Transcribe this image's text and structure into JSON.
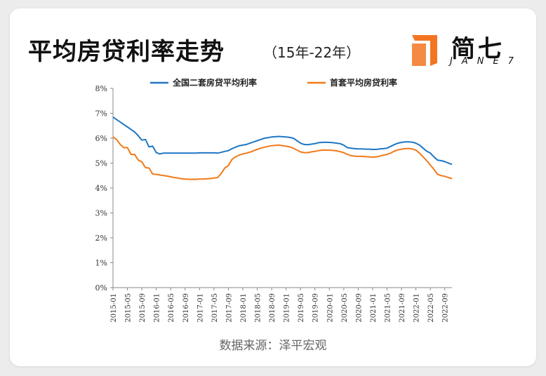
{
  "header": {
    "title": "平均房贷利率走势",
    "subtitle": "（15年-22年）"
  },
  "logo": {
    "cn": "简七",
    "en": "JANE7"
  },
  "source": "数据来源：泽平宏观",
  "colors": {
    "blue": "#1f77c4",
    "orange": "#f07a1a",
    "logo_accent": "#f47521"
  },
  "chart_data": {
    "type": "line",
    "title": "",
    "xlabel": "",
    "ylabel": "",
    "ylim": [
      0,
      8
    ],
    "yticks": [
      "0%",
      "1%",
      "2%",
      "3%",
      "4%",
      "5%",
      "6%",
      "7%",
      "8%"
    ],
    "x": [
      "2015-01",
      "2015-02",
      "2015-03",
      "2015-04",
      "2015-05",
      "2015-06",
      "2015-07",
      "2015-08",
      "2015-09",
      "2015-10",
      "2015-11",
      "2015-12",
      "2016-01",
      "2016-02",
      "2016-03",
      "2016-04",
      "2016-05",
      "2016-06",
      "2016-07",
      "2016-08",
      "2016-09",
      "2016-10",
      "2016-11",
      "2016-12",
      "2017-01",
      "2017-02",
      "2017-03",
      "2017-04",
      "2017-05",
      "2017-06",
      "2017-07",
      "2017-08",
      "2017-09",
      "2017-10",
      "2017-11",
      "2017-12",
      "2018-01",
      "2018-02",
      "2018-03",
      "2018-04",
      "2018-05",
      "2018-06",
      "2018-07",
      "2018-08",
      "2018-09",
      "2018-10",
      "2018-11",
      "2018-12",
      "2019-01",
      "2019-02",
      "2019-03",
      "2019-04",
      "2019-05",
      "2019-06",
      "2019-07",
      "2019-08",
      "2019-09",
      "2019-10",
      "2019-11",
      "2019-12",
      "2020-01",
      "2020-02",
      "2020-03",
      "2020-04",
      "2020-05",
      "2020-06",
      "2020-07",
      "2020-08",
      "2020-09",
      "2020-10",
      "2020-11",
      "2020-12",
      "2021-01",
      "2021-02",
      "2021-03",
      "2021-04",
      "2021-05",
      "2021-06",
      "2021-07",
      "2021-08",
      "2021-09",
      "2021-10",
      "2021-11",
      "2021-12",
      "2022-01",
      "2022-02",
      "2022-03",
      "2022-04",
      "2022-05",
      "2022-06",
      "2022-07",
      "2022-08",
      "2022-09",
      "2022-10",
      "2022-11"
    ],
    "xtick_labels": [
      "2015-01",
      "2015-05",
      "2015-09",
      "2016-01",
      "2016-05",
      "2016-09",
      "2017-01",
      "2017-05",
      "2017-09",
      "2018-01",
      "2018-05",
      "2018-09",
      "2019-01",
      "2019-05",
      "2019-09",
      "2020-01",
      "2020-05",
      "2020-09",
      "2021-01",
      "2021-05",
      "2021-09",
      "2022-01",
      "2022-05",
      "2022-09"
    ],
    "series": [
      {
        "name": "全国二套房贷平均利率",
        "color": "#1f77c4",
        "values": [
          6.85,
          6.75,
          6.65,
          6.55,
          6.45,
          6.35,
          6.25,
          6.1,
          5.92,
          5.95,
          5.65,
          5.68,
          5.42,
          5.37,
          5.4,
          5.4,
          5.4,
          5.4,
          5.4,
          5.4,
          5.4,
          5.4,
          5.4,
          5.4,
          5.41,
          5.41,
          5.41,
          5.41,
          5.41,
          5.4,
          5.43,
          5.47,
          5.5,
          5.58,
          5.64,
          5.7,
          5.72,
          5.75,
          5.8,
          5.85,
          5.9,
          5.95,
          6.0,
          6.02,
          6.05,
          6.06,
          6.07,
          6.06,
          6.05,
          6.03,
          6.0,
          5.9,
          5.8,
          5.75,
          5.74,
          5.76,
          5.78,
          5.82,
          5.83,
          5.84,
          5.83,
          5.82,
          5.8,
          5.78,
          5.72,
          5.62,
          5.6,
          5.58,
          5.57,
          5.57,
          5.56,
          5.56,
          5.55,
          5.55,
          5.57,
          5.58,
          5.6,
          5.67,
          5.74,
          5.8,
          5.83,
          5.85,
          5.85,
          5.84,
          5.8,
          5.72,
          5.6,
          5.48,
          5.4,
          5.25,
          5.12,
          5.1,
          5.06,
          5.0,
          4.95
        ]
      },
      {
        "name": "首套平均房贷利率",
        "color": "#f07a1a",
        "values": [
          6.05,
          5.95,
          5.75,
          5.62,
          5.62,
          5.35,
          5.35,
          5.12,
          5.05,
          4.82,
          4.8,
          4.56,
          4.55,
          4.52,
          4.5,
          4.48,
          4.45,
          4.42,
          4.4,
          4.37,
          4.36,
          4.35,
          4.35,
          4.35,
          4.36,
          4.36,
          4.37,
          4.38,
          4.4,
          4.42,
          4.58,
          4.8,
          4.9,
          5.15,
          5.25,
          5.32,
          5.37,
          5.4,
          5.44,
          5.5,
          5.55,
          5.6,
          5.64,
          5.67,
          5.7,
          5.71,
          5.72,
          5.7,
          5.68,
          5.65,
          5.6,
          5.52,
          5.45,
          5.42,
          5.42,
          5.45,
          5.47,
          5.5,
          5.52,
          5.52,
          5.52,
          5.51,
          5.49,
          5.46,
          5.42,
          5.35,
          5.3,
          5.28,
          5.27,
          5.27,
          5.26,
          5.25,
          5.24,
          5.25,
          5.28,
          5.32,
          5.35,
          5.4,
          5.48,
          5.53,
          5.56,
          5.58,
          5.59,
          5.57,
          5.52,
          5.4,
          5.25,
          5.1,
          4.92,
          4.75,
          4.55,
          4.5,
          4.47,
          4.42,
          4.38
        ]
      }
    ],
    "legend_position": "top"
  }
}
